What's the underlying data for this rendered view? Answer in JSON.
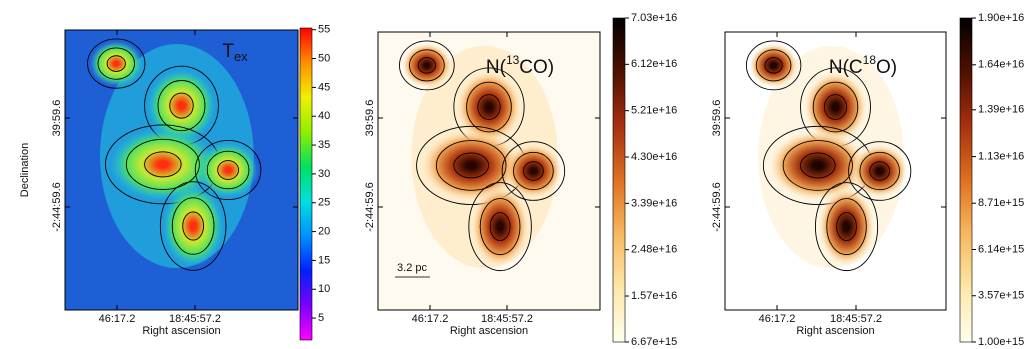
{
  "chart_data": [
    {
      "type": "image",
      "title": [
        {
          "text": "T"
        },
        {
          "text": "ex",
          "sub": true
        }
      ],
      "xlabel": "Right ascension",
      "ylabel": "Declination",
      "xtick_labels": [
        "46:17.2",
        "18:45:57.2"
      ],
      "ytick_labels": [
        "39:59.6",
        "-2:44:59.6"
      ],
      "background": "#1f5fd6",
      "blob_colors": [
        "#22c8e0",
        "#4fe060",
        "#c8e830",
        "#ff3010"
      ],
      "colorbar": {
        "lim": [
          1.2,
          55.3
        ],
        "ticks": [
          5,
          10,
          15,
          20,
          25,
          30,
          35,
          40,
          45,
          50,
          55
        ],
        "colors": [
          "#ff00ff",
          "#7a00ff",
          "#0020ff",
          "#0090ff",
          "#00e0e0",
          "#00e060",
          "#90f000",
          "#f0f000",
          "#ff9000",
          "#ff0000"
        ]
      }
    },
    {
      "type": "image",
      "title": [
        {
          "text": "N("
        },
        {
          "text": "13",
          "sup": true
        },
        {
          "text": "CO)"
        }
      ],
      "xlabel": "Right ascension",
      "xtick_labels": [
        "46:17.2",
        "18:45:57.2"
      ],
      "ytick_labels": [
        "39:59.6",
        "-2:44:59.6"
      ],
      "annotation": "3.2 pc",
      "background": "#fffaf0",
      "blob_colors": [
        "#fde6b8",
        "#f0a050",
        "#b03a10",
        "#2a0500"
      ],
      "colorbar": {
        "lim": [
          6670000000000000.0,
          7.03e+16
        ],
        "ticks": [
          {
            "value": 6670000000000000.0,
            "label": "6.67e+15"
          },
          {
            "value": 1.57e+16,
            "label": "1.57e+16"
          },
          {
            "value": 2.48e+16,
            "label": "2.48e+16"
          },
          {
            "value": 3.39e+16,
            "label": "3.39e+16"
          },
          {
            "value": 4.3e+16,
            "label": "4.30e+16"
          },
          {
            "value": 5.21e+16,
            "label": "5.21e+16"
          },
          {
            "value": 6.12e+16,
            "label": "6.12e+16"
          },
          {
            "value": 7.03e+16,
            "label": "7.03e+16"
          }
        ],
        "colors": [
          "#ffffee",
          "#fde8a8",
          "#f8b860",
          "#e07020",
          "#a83010",
          "#501000",
          "#000000"
        ]
      }
    },
    {
      "type": "image",
      "title": [
        {
          "text": "N(C"
        },
        {
          "text": "18",
          "sup": true
        },
        {
          "text": "O)"
        }
      ],
      "xlabel": "Right ascension",
      "xtick_labels": [
        "46:17.2",
        "18:45:57.2"
      ],
      "ytick_labels": [
        "39:59.6",
        "-2:44:59.6"
      ],
      "background": "#ffffff",
      "blob_colors": [
        "#fdf0d0",
        "#f0a858",
        "#a83810",
        "#200400"
      ],
      "colorbar": {
        "lim": [
          1000000000000000.0,
          1.9e+16
        ],
        "ticks": [
          {
            "value": 1000000000000000.0,
            "label": "1.00e+15"
          },
          {
            "value": 3570000000000000.0,
            "label": "3.57e+15"
          },
          {
            "value": 6140000000000000.0,
            "label": "6.14e+15"
          },
          {
            "value": 8710000000000000.0,
            "label": "8.71e+15"
          },
          {
            "value": 1.13e+16,
            "label": "1.13e+16"
          },
          {
            "value": 1.39e+16,
            "label": "1.39e+16"
          },
          {
            "value": 1.64e+16,
            "label": "1.64e+16"
          },
          {
            "value": 1.9e+16,
            "label": "1.90e+16"
          }
        ],
        "colors": [
          "#ffffee",
          "#fde8a8",
          "#f8b860",
          "#e07020",
          "#a83010",
          "#501000",
          "#000000"
        ]
      }
    }
  ]
}
